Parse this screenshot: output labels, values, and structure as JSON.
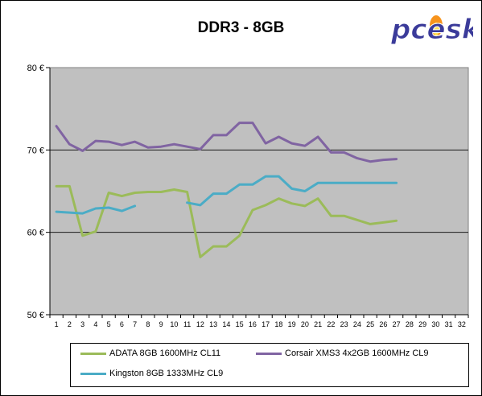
{
  "title": "DDR3 - 8GB",
  "logo_text": "pcesk",
  "chart_data": {
    "type": "line",
    "title": "DDR3 - 8GB",
    "xlabel": "",
    "ylabel": "",
    "x": [
      1,
      2,
      3,
      4,
      5,
      6,
      7,
      8,
      9,
      10,
      11,
      12,
      13,
      14,
      15,
      16,
      17,
      18,
      19,
      20,
      21,
      22,
      23,
      24,
      25,
      26,
      27,
      28,
      29,
      30,
      31,
      32
    ],
    "ylim": [
      50,
      80
    ],
    "yticks": [
      50,
      60,
      70,
      80
    ],
    "ytick_labels": [
      "50 €",
      "60 €",
      "70 €",
      "80 €"
    ],
    "grid": "horizontal",
    "plot_background": "#c0c0c0",
    "legend_position": "bottom",
    "series": [
      {
        "name": "ADATA 8GB 1600MHz CL11",
        "color": "#9bbb59",
        "values": [
          65.6,
          65.6,
          59.6,
          60.1,
          64.8,
          64.4,
          64.8,
          64.9,
          64.9,
          65.2,
          64.9,
          57.0,
          58.3,
          58.3,
          59.6,
          62.7,
          63.3,
          64.1,
          63.5,
          63.2,
          64.1,
          62.0,
          62.0,
          61.5,
          61.0,
          61.2,
          61.4,
          null,
          null,
          null,
          null,
          null
        ]
      },
      {
        "name": "Corsair XMS3 4x2GB 1600MHz CL9",
        "color": "#8064a2",
        "values": [
          72.9,
          70.7,
          69.9,
          71.1,
          71.0,
          70.6,
          71.0,
          70.3,
          70.4,
          70.7,
          70.4,
          70.1,
          71.8,
          71.8,
          73.3,
          73.3,
          70.8,
          71.6,
          70.8,
          70.5,
          71.6,
          69.7,
          69.7,
          69.0,
          68.6,
          68.8,
          68.9,
          null,
          null,
          null,
          null,
          null
        ]
      },
      {
        "name": "Kingston 8GB 1333MHz CL9",
        "color": "#4bacc6",
        "values": [
          62.5,
          62.4,
          62.3,
          62.9,
          63.0,
          62.6,
          63.2,
          null,
          null,
          null,
          63.6,
          63.3,
          64.7,
          64.7,
          65.8,
          65.8,
          66.8,
          66.8,
          65.3,
          65.0,
          66.0,
          66.0,
          66.0,
          66.0,
          66.0,
          66.0,
          66.0,
          null,
          null,
          null,
          null,
          null
        ]
      }
    ]
  },
  "legend": {
    "items": [
      {
        "label": "ADATA 8GB 1600MHz CL11",
        "color": "#9bbb59"
      },
      {
        "label": "Corsair XMS3 4x2GB 1600MHz CL9",
        "color": "#8064a2"
      },
      {
        "label": "Kingston 8GB 1333MHz CL9",
        "color": "#4bacc6"
      }
    ]
  }
}
